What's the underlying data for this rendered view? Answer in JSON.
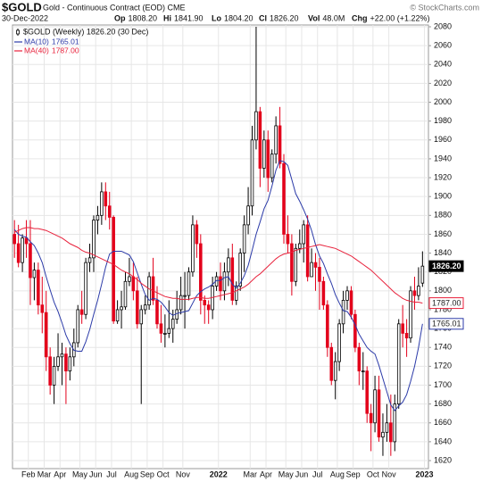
{
  "header": {
    "symbol": "$GOLD",
    "name": "Gold - Continuous Contract (EOD) CME",
    "date": "30-Dec-2022",
    "credit": "© StockCharts.com",
    "quote": [
      {
        "label": "Op",
        "value": "1808.20"
      },
      {
        "label": "Hi",
        "value": "1841.90"
      },
      {
        "label": "Lo",
        "value": "1804.20"
      },
      {
        "label": "Cl",
        "value": "1826.20"
      },
      {
        "label": "Vol",
        "value": "48.0M"
      },
      {
        "label": "Chg",
        "value": "+22.00 (+1.22%)"
      }
    ]
  },
  "chart_data": {
    "type": "candlestick",
    "legend_label": "$GOLD (Weekly) 1826.20 (30 Dec)",
    "last_label": "1826.20",
    "up_color": "#000000",
    "down_color": "#e3001b",
    "grid": true,
    "xlim": [
      -0.5,
      104.5
    ],
    "xticks": [
      {
        "value": 3.5,
        "label": "Feb"
      },
      {
        "value": 7.5,
        "label": "Mar"
      },
      {
        "value": 11.5,
        "label": "Apr"
      },
      {
        "value": 16.5,
        "label": "May"
      },
      {
        "value": 20.5,
        "label": "Jun"
      },
      {
        "value": 24.5,
        "label": "Jul"
      },
      {
        "value": 29.5,
        "label": "Aug"
      },
      {
        "value": 33.5,
        "label": "Sep"
      },
      {
        "value": 37.5,
        "label": "Oct"
      },
      {
        "value": 42.5,
        "label": "Nov"
      },
      {
        "value": 51.5,
        "label": "2022"
      },
      {
        "value": 59.5,
        "label": "Mar"
      },
      {
        "value": 63.5,
        "label": "Apr"
      },
      {
        "value": 68.5,
        "label": "May"
      },
      {
        "value": 72.5,
        "label": "Jun"
      },
      {
        "value": 76.5,
        "label": "Jul"
      },
      {
        "value": 81.5,
        "label": "Aug"
      },
      {
        "value": 85.5,
        "label": "Sep"
      },
      {
        "value": 90.5,
        "label": "Oct"
      },
      {
        "value": 94.5,
        "label": "Nov"
      },
      {
        "value": 103.5,
        "label": "2023"
      }
    ],
    "ylim": [
      1611.5,
      2081.9
    ],
    "yticks": [
      1620,
      1640,
      1660,
      1680,
      1700,
      1720,
      1740,
      1760,
      1780,
      1800,
      1820,
      1840,
      1860,
      1880,
      1900,
      1920,
      1940,
      1960,
      1980,
      2000,
      2020,
      2040,
      2060,
      2080
    ],
    "open": [
      1860,
      1850,
      1830,
      1856,
      1850,
      1814,
      1822,
      1785,
      1777,
      1730,
      1700,
      1720,
      1730,
      1733,
      1715,
      1730,
      1745,
      1780,
      1775,
      1830,
      1835,
      1875,
      1880,
      1905,
      1890,
      1878,
      1768,
      1780,
      1783,
      1810,
      1815,
      1800,
      1765,
      1780,
      1785,
      1815,
      1790,
      1765,
      1755,
      1755,
      1760,
      1770,
      1780,
      1795,
      1795,
      1820,
      1870,
      1850,
      1790,
      1785,
      1780,
      1805,
      1815,
      1800,
      1820,
      1835,
      1790,
      1805,
      1840,
      1870,
      1890,
      1960,
      1990,
      1930,
      1960,
      1920,
      1945,
      1975,
      1935,
      1860,
      1850,
      1810,
      1845,
      1850,
      1870,
      1815,
      1830,
      1825,
      1810,
      1785,
      1740,
      1705,
      1725,
      1765,
      1790,
      1800,
      1775,
      1740,
      1715,
      1715,
      1670,
      1660,
      1695,
      1645,
      1650,
      1660,
      1640,
      1680,
      1765,
      1755,
      1750,
      1800,
      1795,
      1808.2
    ],
    "high": [
      1875,
      1870,
      1860,
      1875,
      1875,
      1830,
      1830,
      1815,
      1800,
      1740,
      1730,
      1755,
      1745,
      1740,
      1740,
      1760,
      1785,
      1800,
      1835,
      1850,
      1880,
      1890,
      1915,
      1915,
      1905,
      1880,
      1790,
      1800,
      1820,
      1835,
      1830,
      1815,
      1785,
      1795,
      1820,
      1835,
      1805,
      1785,
      1775,
      1790,
      1780,
      1800,
      1815,
      1820,
      1825,
      1880,
      1875,
      1860,
      1795,
      1790,
      1815,
      1820,
      1830,
      1830,
      1845,
      1850,
      1810,
      1845,
      1880,
      1910,
      1975,
      2080,
      1995,
      1970,
      1970,
      1950,
      1985,
      1995,
      1945,
      1880,
      1860,
      1850,
      1865,
      1875,
      1880,
      1845,
      1840,
      1835,
      1815,
      1790,
      1745,
      1735,
      1770,
      1800,
      1805,
      1805,
      1780,
      1745,
      1735,
      1720,
      1680,
      1710,
      1710,
      1670,
      1680,
      1690,
      1690,
      1770,
      1785,
      1770,
      1805,
      1815,
      1825,
      1841.9
    ],
    "low": [
      1835,
      1825,
      1820,
      1835,
      1785,
      1790,
      1775,
      1755,
      1715,
      1690,
      1680,
      1715,
      1700,
      1680,
      1705,
      1720,
      1740,
      1765,
      1770,
      1820,
      1820,
      1860,
      1870,
      1875,
      1865,
      1765,
      1765,
      1760,
      1780,
      1805,
      1790,
      1760,
      1680,
      1775,
      1780,
      1785,
      1760,
      1745,
      1740,
      1750,
      1745,
      1765,
      1775,
      1760,
      1790,
      1815,
      1835,
      1775,
      1765,
      1765,
      1770,
      1800,
      1790,
      1790,
      1805,
      1785,
      1785,
      1800,
      1820,
      1860,
      1880,
      1950,
      1910,
      1920,
      1905,
      1915,
      1935,
      1930,
      1850,
      1840,
      1795,
      1805,
      1840,
      1830,
      1810,
      1815,
      1800,
      1780,
      1780,
      1730,
      1700,
      1685,
      1715,
      1755,
      1780,
      1770,
      1735,
      1700,
      1695,
      1660,
      1630,
      1650,
      1640,
      1625,
      1640,
      1625,
      1630,
      1675,
      1740,
      1730,
      1745,
      1780,
      1790,
      1804.2
    ],
    "close": [
      1850,
      1830,
      1856,
      1850,
      1814,
      1822,
      1785,
      1777,
      1730,
      1700,
      1720,
      1730,
      1733,
      1715,
      1730,
      1745,
      1780,
      1775,
      1830,
      1835,
      1875,
      1880,
      1905,
      1890,
      1878,
      1768,
      1780,
      1783,
      1810,
      1815,
      1800,
      1765,
      1780,
      1785,
      1815,
      1790,
      1765,
      1755,
      1755,
      1760,
      1770,
      1780,
      1795,
      1795,
      1820,
      1870,
      1850,
      1790,
      1785,
      1780,
      1805,
      1815,
      1800,
      1820,
      1835,
      1790,
      1805,
      1840,
      1870,
      1890,
      1960,
      1990,
      1930,
      1960,
      1920,
      1945,
      1975,
      1935,
      1860,
      1850,
      1810,
      1845,
      1850,
      1870,
      1815,
      1830,
      1825,
      1810,
      1785,
      1740,
      1705,
      1725,
      1765,
      1790,
      1800,
      1775,
      1740,
      1715,
      1715,
      1670,
      1660,
      1695,
      1645,
      1650,
      1660,
      1640,
      1680,
      1765,
      1755,
      1750,
      1800,
      1795,
      1805,
      1826.2
    ],
    "series": [
      {
        "name": "MA(10)",
        "last_label": "1765.01",
        "color": "#2b3aa8",
        "values": [
          1865,
          1860,
          1858,
          1857,
          1852,
          1848,
          1840,
          1830,
          1815,
          1801,
          1788,
          1778,
          1766,
          1753,
          1744,
          1737,
          1736,
          1736,
          1746,
          1759,
          1775,
          1790,
          1807,
          1825,
          1839,
          1842,
          1842,
          1842,
          1840,
          1838,
          1831,
          1819,
          1807,
          1796,
          1790,
          1792,
          1791,
          1788,
          1783,
          1777,
          1774,
          1776,
          1777,
          1778,
          1779,
          1787,
          1795,
          1799,
          1802,
          1804,
          1807,
          1811,
          1811,
          1814,
          1815,
          1807,
          1803,
          1808,
          1816,
          1827,
          1843,
          1860,
          1873,
          1887,
          1896,
          1911,
          1928,
          1938,
          1937,
          1933,
          1918,
          1903,
          1895,
          1886,
          1876,
          1864,
          1849,
          1837,
          1829,
          1818,
          1808,
          1796,
          1787,
          1779,
          1778,
          1772,
          1764,
          1754,
          1747,
          1740,
          1736,
          1733,
          1721,
          1707,
          1693,
          1679,
          1673,
          1678,
          1682,
          1690,
          1704,
          1720,
          1740,
          1765.01
        ]
      },
      {
        "name": "MA(40)",
        "last_label": "1787.00",
        "color": "#e8223c",
        "values": [
          1862,
          1864,
          1866,
          1867,
          1867,
          1866,
          1866,
          1865,
          1864,
          1862,
          1860,
          1858,
          1856,
          1853,
          1850,
          1848,
          1846,
          1843,
          1841,
          1840,
          1838,
          1836,
          1834,
          1832,
          1830,
          1828,
          1825,
          1822,
          1820,
          1818,
          1815,
          1812,
          1808,
          1805,
          1802,
          1800,
          1798,
          1796,
          1794,
          1793,
          1792,
          1792,
          1791,
          1791,
          1791,
          1792,
          1793,
          1793,
          1792,
          1792,
          1793,
          1794,
          1795,
          1796,
          1797,
          1798,
          1800,
          1802,
          1804,
          1807,
          1811,
          1815,
          1818,
          1822,
          1826,
          1830,
          1834,
          1837,
          1839,
          1840,
          1841,
          1843,
          1844,
          1845,
          1846,
          1847,
          1848,
          1849,
          1848,
          1847,
          1846,
          1845,
          1843,
          1841,
          1839,
          1837,
          1834,
          1831,
          1828,
          1825,
          1822,
          1818,
          1814,
          1810,
          1806,
          1802,
          1798,
          1795,
          1792,
          1790,
          1789,
          1788,
          1788,
          1787
        ]
      }
    ]
  }
}
